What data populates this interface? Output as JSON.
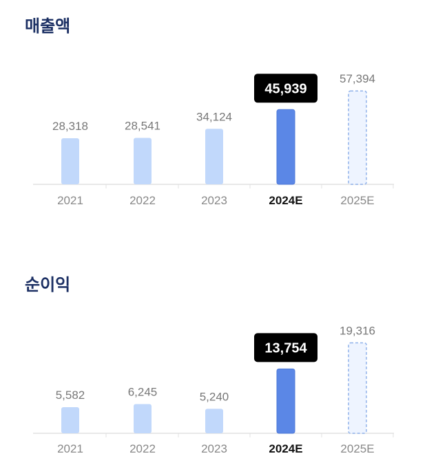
{
  "chart_data": [
    {
      "type": "bar",
      "title": "매출액",
      "categories": [
        "2021",
        "2022",
        "2023",
        "2024E",
        "2025E"
      ],
      "values": [
        28318,
        28541,
        34124,
        45939,
        57394
      ],
      "highlight": "2024E",
      "estimate": "2025E",
      "value_labels": [
        "28,318",
        "28,541",
        "34,124",
        "45,939",
        "57,394"
      ],
      "xlabel": "",
      "ylabel": "",
      "grid": false,
      "colors": {
        "actual": "#c1d8fb",
        "highlight": "#5b87e6",
        "estimate_fill": "#eef4ff",
        "estimate_border": "#8fb1ea",
        "callout": "#000000"
      }
    },
    {
      "type": "bar",
      "title": "순이익",
      "categories": [
        "2021",
        "2022",
        "2023",
        "2024E",
        "2025E"
      ],
      "values": [
        5582,
        6245,
        5240,
        13754,
        19316
      ],
      "highlight": "2024E",
      "estimate": "2025E",
      "value_labels": [
        "5,582",
        "6,245",
        "5,240",
        "13,754",
        "19,316"
      ],
      "xlabel": "",
      "ylabel": "",
      "grid": false,
      "colors": {
        "actual": "#c1d8fb",
        "highlight": "#5b87e6",
        "estimate_fill": "#eef4ff",
        "estimate_border": "#8fb1ea",
        "callout": "#000000"
      }
    }
  ]
}
